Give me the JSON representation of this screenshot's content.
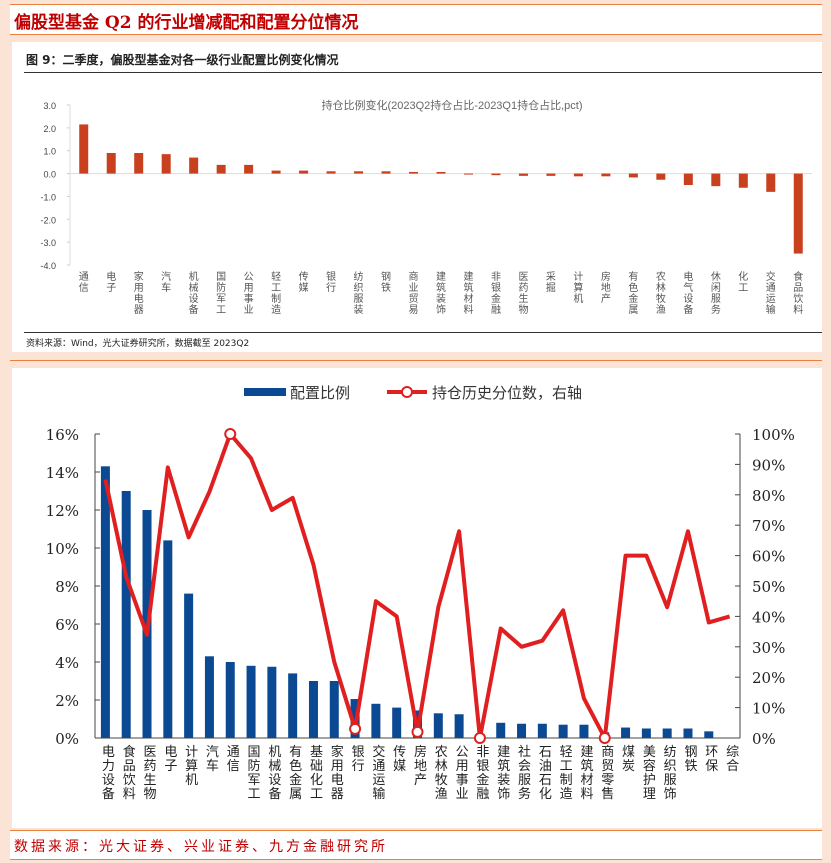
{
  "page_title": "偏股型基金 Q2 的行业增减配和配置分位情况",
  "footer_source": "数据来源：光大证券、兴业证券、九方金融研究所",
  "colors": {
    "bar_top": "#c9401f",
    "bar_bottom": "#0b4a93",
    "line": "#e02020",
    "title": "#c00000"
  },
  "chart_data": [
    {
      "type": "bar",
      "figure_title": "图 9：二季度，偏股型基金对各一级行业配置比例变化情况",
      "title": "持仓比例变化(2023Q2持仓占比-2023Q1持仓占比,pct)",
      "source": "资料来源：Wind，光大证券研究所，数据截至 2023Q2",
      "categories": [
        "通信",
        "电子",
        "家用电器",
        "汽车",
        "机械设备",
        "国防军工",
        "公用事业",
        "轻工制造",
        "传媒",
        "银行",
        "纺织服装",
        "钢铁",
        "商业贸易",
        "建筑装饰",
        "建筑材料",
        "非银金融",
        "医药生物",
        "采掘",
        "计算机",
        "房地产",
        "有色金属",
        "农林牧渔",
        "电气设备",
        "休闲服务",
        "化工",
        "交通运输",
        "食品饮料"
      ],
      "values": [
        2.15,
        0.9,
        0.9,
        0.85,
        0.7,
        0.38,
        0.38,
        0.13,
        0.13,
        0.1,
        0.1,
        0.1,
        0.07,
        0.07,
        -0.03,
        -0.07,
        -0.1,
        -0.1,
        -0.12,
        -0.12,
        -0.17,
        -0.27,
        -0.5,
        -0.55,
        -0.62,
        -0.8,
        -3.5
      ],
      "ylim": [
        -4.0,
        3.0
      ],
      "yticks": [
        "3.0",
        "2.0",
        "1.0",
        "0.0",
        "-1.0",
        "-2.0",
        "-3.0",
        "-4.0"
      ]
    },
    {
      "type": "bar+line",
      "legend": [
        "配置比例",
        "持仓历史分位数，右轴"
      ],
      "legend_position": "top",
      "categories": [
        "电力设备",
        "食品饮料",
        "医药生物",
        "电子",
        "计算机",
        "汽车",
        "通信",
        "国防军工",
        "机械设备",
        "有色金属",
        "基础化工",
        "家用电器",
        "银行",
        "交通运输",
        "传媒",
        "房地产",
        "农林牧渔",
        "公用事业",
        "非银金融",
        "建筑装饰",
        "社会服务",
        "石油石化",
        "轻工制造",
        "建筑材料",
        "商贸零售",
        "煤炭",
        "美容护理",
        "纺织服饰",
        "钢铁",
        "环保",
        "综合"
      ],
      "series": [
        {
          "name": "配置比例",
          "type": "bar",
          "axis": "left",
          "values": [
            14.3,
            13.0,
            12.0,
            10.4,
            7.6,
            4.3,
            4.0,
            3.8,
            3.75,
            3.4,
            3.0,
            3.0,
            2.05,
            1.8,
            1.6,
            1.45,
            1.3,
            1.25,
            0.0,
            0.8,
            0.75,
            0.75,
            0.7,
            0.7,
            0.3,
            0.55,
            0.5,
            0.5,
            0.5,
            0.35,
            0.0
          ]
        },
        {
          "name": "持仓历史分位数，右轴",
          "type": "line",
          "axis": "right",
          "values": [
            85,
            53,
            34,
            89,
            66,
            81,
            100,
            92,
            75,
            79,
            57,
            25,
            3,
            45,
            40,
            2,
            43,
            68,
            0,
            36,
            30,
            32,
            42,
            13,
            0,
            60,
            60,
            43,
            68,
            38,
            40
          ]
        }
      ],
      "ylim_left": [
        0,
        16
      ],
      "ylim_right": [
        0,
        100
      ],
      "yticks_left": [
        "0%",
        "2%",
        "4%",
        "6%",
        "8%",
        "10%",
        "12%",
        "14%",
        "16%"
      ],
      "yticks_right": [
        "0%",
        "10%",
        "20%",
        "30%",
        "40%",
        "50%",
        "60%",
        "70%",
        "80%",
        "90%",
        "100%"
      ]
    }
  ]
}
